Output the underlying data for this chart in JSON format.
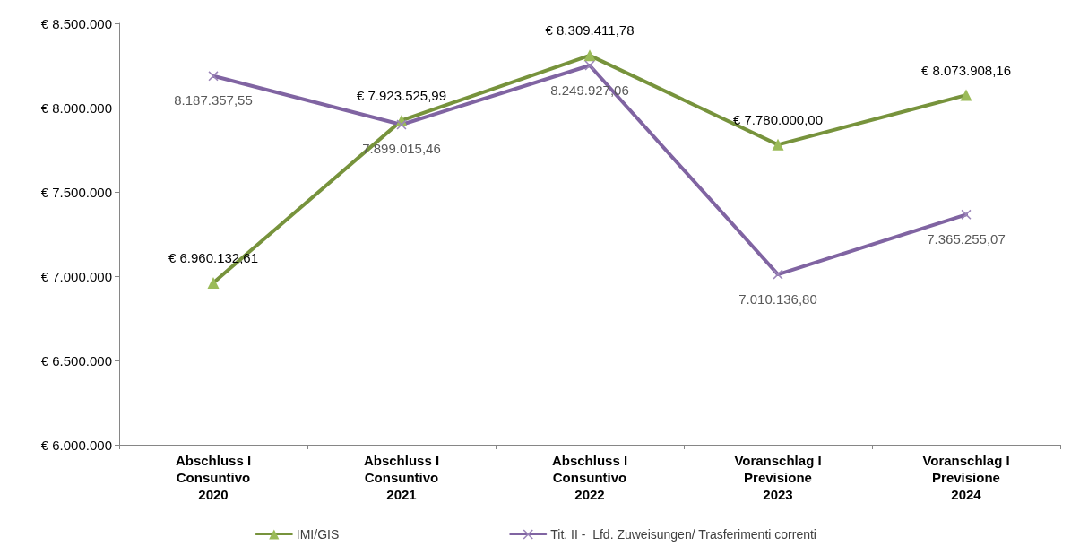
{
  "chart_data": {
    "type": "line",
    "categories": [
      "Abschluss I\nConsuntivo\n2020",
      "Abschluss I\nConsuntivo\n2021",
      "Abschluss I\nConsuntivo\n2022",
      "Voranschlag I\nPrevisione\n2023",
      "Voranschlag I\nPrevisione\n2024"
    ],
    "series": [
      {
        "name": "IMI/GIS",
        "color": "#77933c",
        "marker": "triangle",
        "values": [
          6960132.61,
          7923525.99,
          8309411.78,
          7780000.0,
          8073908.16
        ],
        "value_labels": [
          "€ 6.960.132,61",
          "€ 7.923.525,99",
          "€ 8.309.411,78",
          "€ 7.780.000,00",
          "€ 8.073.908,16"
        ]
      },
      {
        "name": "Tit. II -  Lfd. Zuweisungen/ Trasferimenti correnti",
        "color": "#8064a2",
        "marker": "cross",
        "values": [
          8187357.55,
          7899015.46,
          8249927.06,
          7010136.8,
          7365255.07
        ],
        "value_labels": [
          "8.187.357,55",
          "7.899.015,46",
          "8.249.927,06",
          "7.010.136,80",
          "7.365.255,07"
        ]
      }
    ],
    "ylim": [
      6000000,
      8500000
    ],
    "yticks": [
      {
        "value": 6000000,
        "label": "€ 6.000.000"
      },
      {
        "value": 6500000,
        "label": "€ 6.500.000"
      },
      {
        "value": 7000000,
        "label": "€ 7.000.000"
      },
      {
        "value": 7500000,
        "label": "€ 7.500.000"
      },
      {
        "value": 8000000,
        "label": "€ 8.000.000"
      },
      {
        "value": 8500000,
        "label": "€ 8.500.000"
      }
    ],
    "grid": false,
    "legend": "bottom",
    "line_style": "solid"
  }
}
